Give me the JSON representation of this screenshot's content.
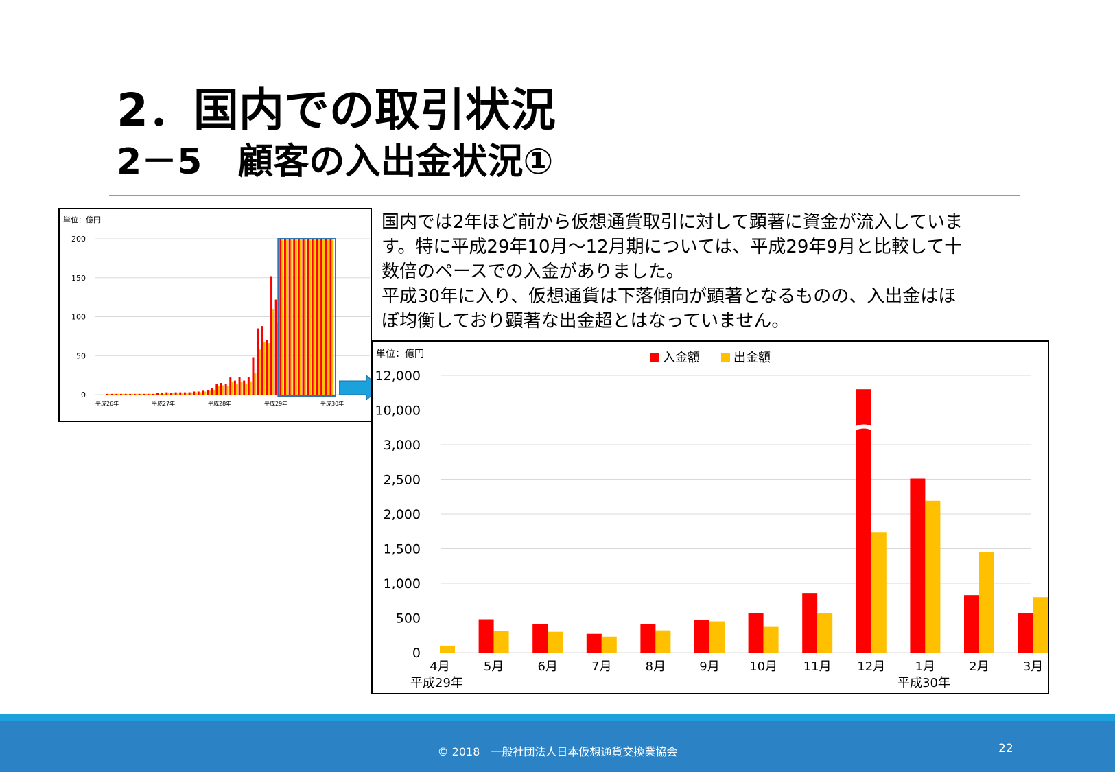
{
  "slide": {
    "title_line1": "2．国内での取引状況",
    "title_line2": "2－5　顧客の入出金状況①",
    "description": [
      "国内では2年ほど前から仮想通貨取引に対して顕著に資金が流入していま",
      "す。特に平成29年10月～12月期については、平成29年9月と比較して十",
      "数倍のペースでの入金がありました。",
      "平成30年に入り、仮想通貨は下落傾向が顕著となるものの、入出金はほ",
      "ぼ均衡しており顕著な出金超とはなっていません。"
    ],
    "footer_copyright": "© 2018　一般社団法人日本仮想通貨交換業協会",
    "page_number": "22",
    "colors": {
      "deposit": "#ff0000",
      "withdrawal": "#ffc000",
      "highlight_box": "#2e75b6",
      "arrow": "#1ba1dc",
      "footer": "#2b83c6",
      "footer_stripe": "#1ba1dc"
    }
  },
  "chart_data": [
    {
      "type": "bar",
      "unit_label": "単位：億円",
      "y_ticks": [
        "0",
        "50",
        "100",
        "150",
        "200"
      ],
      "ylim": [
        0,
        200
      ],
      "x_tick_labels": [
        "平成26年",
        "平成27年",
        "平成28年",
        "平成29年",
        "平成30年"
      ],
      "grid": true,
      "series": [
        {
          "values": [
            1,
            1,
            1,
            1,
            1,
            1,
            1,
            1,
            1,
            1,
            1,
            2,
            2,
            3,
            2,
            3,
            3,
            3,
            3,
            4,
            4,
            5,
            6,
            8,
            14,
            15,
            14,
            22,
            18,
            22,
            18,
            22,
            48,
            85,
            88,
            70,
            152,
            122,
            200,
            200,
            200,
            200,
            200,
            200,
            200,
            200,
            200,
            200,
            200,
            200
          ]
        },
        {
          "values": [
            1,
            1,
            1,
            1,
            1,
            1,
            1,
            1,
            1,
            1,
            1,
            1,
            1,
            2,
            2,
            2,
            2,
            2,
            3,
            3,
            3,
            4,
            5,
            6,
            11,
            12,
            11,
            16,
            14,
            16,
            14,
            17,
            28,
            58,
            68,
            66,
            110,
            92,
            200,
            200,
            200,
            200,
            200,
            200,
            200,
            200,
            200,
            200,
            200,
            200
          ]
        }
      ],
      "highlight": "平成29年4月～平成30年3月"
    },
    {
      "type": "bar",
      "unit_label": "単位：億円",
      "categories": [
        "4月",
        "5月",
        "6月",
        "7月",
        "8月",
        "9月",
        "10月",
        "11月",
        "12月",
        "1月",
        "2月",
        "3月"
      ],
      "category_groups": [
        {
          "label": "平成29年",
          "starts_at": "4月"
        },
        {
          "label": "平成30年",
          "starts_at": "1月"
        }
      ],
      "y_ticks": [
        "0",
        "500",
        "1,000",
        "1,500",
        "2,000",
        "2,500",
        "3,000",
        "10,000",
        "12,000"
      ],
      "axis_break": "3,000～10,000",
      "ylim": [
        0,
        12000
      ],
      "legend": "top-center",
      "grid": true,
      "series": [
        {
          "name": "入金額",
          "values": [
            0,
            480,
            410,
            270,
            410,
            470,
            570,
            860,
            11200,
            2510,
            830,
            570
          ]
        },
        {
          "name": "出金額",
          "values": [
            100,
            310,
            300,
            230,
            320,
            450,
            380,
            570,
            1740,
            2190,
            1450,
            800
          ]
        }
      ]
    }
  ]
}
